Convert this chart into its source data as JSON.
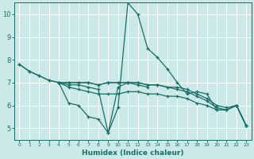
{
  "xlabel": "Humidex (Indice chaleur)",
  "ylabel": "",
  "bg_color": "#cce9ea",
  "grid_color": "#ffffff",
  "line_color": "#1a6e64",
  "xlim": [
    -0.5,
    23.5
  ],
  "ylim": [
    4.5,
    10.5
  ],
  "xticks": [
    0,
    1,
    2,
    3,
    4,
    5,
    6,
    7,
    8,
    9,
    10,
    11,
    12,
    13,
    14,
    15,
    16,
    17,
    18,
    19,
    20,
    21,
    22,
    23
  ],
  "yticks": [
    5,
    6,
    7,
    8,
    9,
    10
  ],
  "lines": [
    {
      "x": [
        0,
        1,
        2,
        3,
        4,
        5,
        6,
        7,
        8,
        9,
        10,
        11,
        12,
        13,
        14,
        15,
        16,
        17,
        18,
        19,
        20,
        21,
        22,
        23
      ],
      "y": [
        7.8,
        7.5,
        7.3,
        7.1,
        7.0,
        6.9,
        6.9,
        6.8,
        6.7,
        4.8,
        5.9,
        10.5,
        10.0,
        8.5,
        8.1,
        7.6,
        7.0,
        6.5,
        6.6,
        6.5,
        5.8,
        5.8,
        6.0,
        5.1
      ]
    },
    {
      "x": [
        0,
        1,
        2,
        3,
        4,
        5,
        6,
        7,
        8,
        9,
        10,
        11,
        12,
        13
      ],
      "y": [
        7.8,
        7.5,
        7.3,
        7.1,
        7.0,
        6.1,
        6.0,
        5.5,
        5.4,
        4.8,
        6.8,
        7.0,
        6.9,
        6.8
      ]
    },
    {
      "x": [
        4,
        5,
        6,
        7,
        8,
        9,
        10,
        11,
        12,
        13,
        14,
        15,
        16,
        17,
        18,
        19,
        20,
        21,
        22,
        23
      ],
      "y": [
        7.0,
        7.0,
        7.0,
        7.0,
        6.9,
        7.0,
        7.0,
        7.0,
        7.0,
        6.9,
        6.9,
        6.8,
        6.8,
        6.7,
        6.5,
        6.3,
        6.0,
        5.9,
        6.0,
        5.1
      ]
    },
    {
      "x": [
        4,
        5,
        6,
        7,
        8,
        9,
        10,
        11,
        12,
        13,
        14,
        15,
        16,
        17,
        18,
        19,
        20,
        21,
        22,
        23
      ],
      "y": [
        7.0,
        7.0,
        7.0,
        7.0,
        6.9,
        7.0,
        7.0,
        7.0,
        7.0,
        6.9,
        6.9,
        6.8,
        6.7,
        6.6,
        6.4,
        6.2,
        5.9,
        5.8,
        6.0,
        5.1
      ]
    },
    {
      "x": [
        4,
        5,
        6,
        7,
        8,
        9,
        10,
        11,
        12,
        13,
        14,
        15,
        16,
        17,
        18,
        19,
        20,
        21,
        22,
        23
      ],
      "y": [
        7.0,
        6.8,
        6.7,
        6.6,
        6.5,
        6.5,
        6.5,
        6.6,
        6.6,
        6.5,
        6.5,
        6.4,
        6.4,
        6.3,
        6.1,
        6.0,
        5.8,
        5.8,
        6.0,
        5.1
      ]
    }
  ]
}
